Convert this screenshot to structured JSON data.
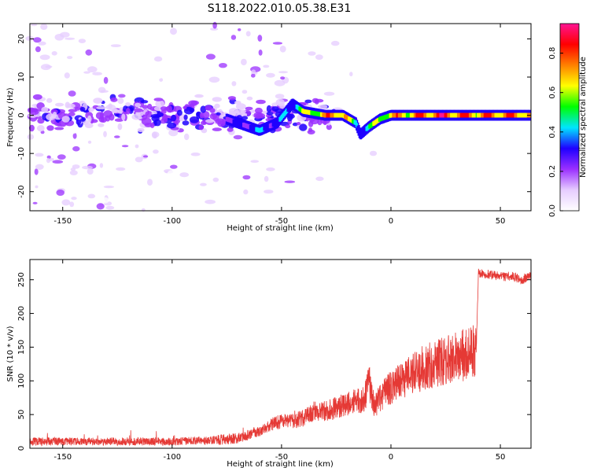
{
  "title": "S118.2022.010.05.38.E31",
  "colors": {
    "snr_line": "#e53935",
    "axis": "#000000"
  },
  "colormap": [
    "#ffffff",
    "#e6ccff",
    "#9b30ff",
    "#1f00ff",
    "#00e5ff",
    "#00ff00",
    "#ffff00",
    "#ff8000",
    "#ff0000",
    "#ff1493"
  ],
  "chart_data": [
    {
      "type": "heatmap",
      "title": "",
      "xlabel": "Height of straight line (km)",
      "ylabel": "Frequency (Hz)",
      "xlim": [
        -165,
        64
      ],
      "ylim": [
        -25,
        24
      ],
      "xticks": [
        -150,
        -100,
        -50,
        0,
        50
      ],
      "yticks": [
        -20,
        -10,
        0,
        10,
        20
      ],
      "ridge": {
        "x": [
          -165,
          -120,
          -80,
          -70,
          -60,
          -52,
          -45,
          -40,
          -30,
          -22,
          -16,
          -14,
          -10,
          -5,
          0,
          5,
          10,
          15,
          20,
          30,
          40,
          50,
          63
        ],
        "freq": [
          0,
          0,
          0,
          -2,
          -4,
          -2,
          3,
          1,
          0,
          0,
          -2,
          -5,
          -3,
          -1,
          0,
          0,
          0,
          0,
          0,
          0,
          0,
          0,
          0
        ],
        "amplitude": [
          0.15,
          0.18,
          0.22,
          0.35,
          0.45,
          0.4,
          0.5,
          0.65,
          0.8,
          0.9,
          0.5,
          0.45,
          0.55,
          0.7,
          0.75,
          0.85,
          0.8,
          0.9,
          0.95,
          0.9,
          0.85,
          0.9,
          0.85
        ]
      },
      "colorbar": {
        "label": "Normalized spectral amplitude",
        "range": [
          0,
          0.95
        ],
        "ticks": [
          "0.0",
          "0.2",
          "0.4",
          "0.6",
          "0.8"
        ]
      }
    },
    {
      "type": "line",
      "title": "",
      "xlabel": "Height of straight line (km)",
      "ylabel": "SNR (10 * v/v)",
      "xlim": [
        -165,
        64
      ],
      "ylim": [
        0,
        280
      ],
      "xticks": [
        -150,
        -100,
        -50,
        0,
        50
      ],
      "yticks": [
        0,
        50,
        100,
        150,
        200,
        250
      ],
      "series": [
        {
          "x": [
            -165,
            -150,
            -120,
            -100,
            -80,
            -70,
            -60,
            -55,
            -50,
            -45,
            -40,
            -35,
            -30,
            -25,
            -20,
            -15,
            -12,
            -10,
            -8,
            -5,
            0,
            5,
            10,
            15,
            20,
            25,
            30,
            35,
            39,
            40,
            45,
            50,
            55,
            60,
            63
          ],
          "y": [
            10,
            10,
            10,
            10,
            12,
            15,
            25,
            35,
            40,
            40,
            45,
            55,
            55,
            60,
            65,
            70,
            75,
            100,
            60,
            75,
            90,
            100,
            110,
            120,
            125,
            130,
            135,
            140,
            145,
            260,
            258,
            255,
            255,
            250,
            255
          ]
        }
      ]
    }
  ]
}
